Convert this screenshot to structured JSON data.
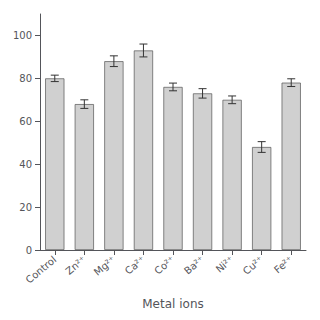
{
  "chart_data": {
    "type": "bar",
    "categories": [
      "Control",
      "Zn²⁺",
      "Mg²⁺",
      "Ca²⁺",
      "Co²⁺",
      "Ba²⁺",
      "Ni²⁺",
      "Cu²⁺",
      "Fe²⁺"
    ],
    "values": [
      80,
      68,
      88,
      93,
      76,
      73,
      70,
      48,
      78
    ],
    "errors": [
      1.5,
      2.0,
      2.5,
      3.0,
      1.8,
      2.2,
      1.8,
      2.5,
      1.8
    ],
    "color": "#d0d0d0",
    "xlabel": "Metal ions",
    "ylim": [
      0,
      110
    ],
    "yticks": [
      0,
      20,
      40,
      60,
      80,
      100
    ],
    "grid": false
  }
}
